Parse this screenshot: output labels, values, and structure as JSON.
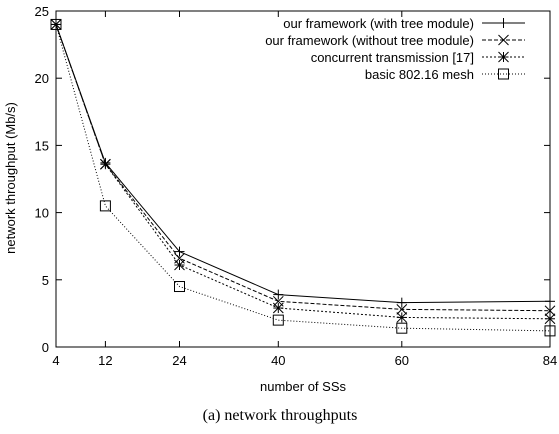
{
  "chart_data": {
    "type": "line",
    "title": "",
    "caption": "(a) network throughputs",
    "xlabel": "number of SSs",
    "ylabel": "network throughput (Mb/s)",
    "x": [
      4,
      12,
      24,
      40,
      60,
      84
    ],
    "x_ticks": [
      "4",
      "12",
      "24",
      "40",
      "60",
      "84"
    ],
    "y_ticks": [
      "0",
      "5",
      "10",
      "15",
      "20",
      "25"
    ],
    "xlim": [
      4,
      84
    ],
    "ylim": [
      0,
      25
    ],
    "grid": false,
    "legend_position": "top-right",
    "series": [
      {
        "name": "our framework (with tree module)",
        "marker": "plus",
        "dash": "",
        "values": [
          24.0,
          13.7,
          7.1,
          3.9,
          3.3,
          3.4
        ]
      },
      {
        "name": "our framework (without tree module)",
        "marker": "cross",
        "dash": "4,2",
        "values": [
          24.0,
          13.6,
          6.6,
          3.4,
          2.8,
          2.7
        ]
      },
      {
        "name": "concurrent transmission [17]",
        "marker": "star",
        "dash": "2,2",
        "values": [
          24.0,
          13.6,
          6.1,
          2.9,
          2.2,
          2.1
        ]
      },
      {
        "name": "basic 802.16 mesh",
        "marker": "square",
        "dash": "1,2",
        "values": [
          24.0,
          10.5,
          4.5,
          2.0,
          1.4,
          1.2
        ]
      }
    ]
  }
}
